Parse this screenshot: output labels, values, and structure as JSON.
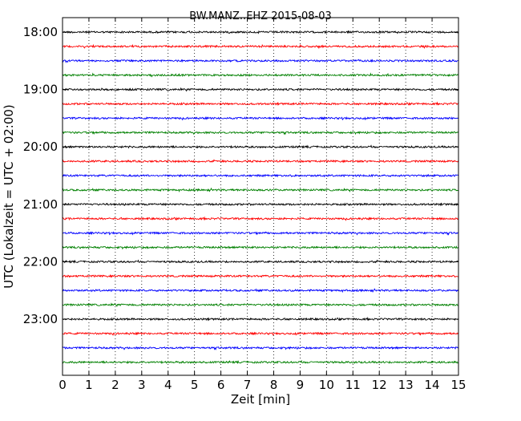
{
  "chart_data": {
    "type": "line",
    "title": "BW.MANZ..EHZ 2015-08-03",
    "xlabel": "Zeit  [min]",
    "ylabel": "UTC (Lokalzeit = UTC + 02:00)",
    "xlim": [
      0,
      15
    ],
    "x_ticks": [
      "0",
      "1",
      "2",
      "3",
      "4",
      "5",
      "6",
      "7",
      "8",
      "9",
      "10",
      "11",
      "12",
      "13",
      "14",
      "15"
    ],
    "y_ticks": [
      {
        "label": "18:00",
        "row": 0
      },
      {
        "label": "19:00",
        "row": 4
      },
      {
        "label": "20:00",
        "row": 8
      },
      {
        "label": "21:00",
        "row": 12
      },
      {
        "label": "22:00",
        "row": 16
      },
      {
        "label": "23:00",
        "row": 20
      }
    ],
    "rows": 24,
    "row_interval_minutes": 15,
    "first_row_start": "18:00",
    "trace_colors": [
      "#000000",
      "#ff0000",
      "#0000ff",
      "#008000"
    ],
    "grid": "vertical dotted at each minute",
    "legend": "none"
  }
}
